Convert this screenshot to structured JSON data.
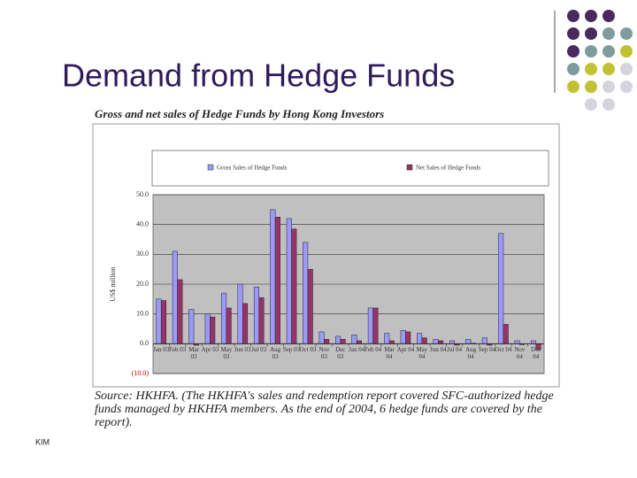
{
  "header": {
    "title": "Demand from Hedge Funds"
  },
  "footer": {
    "text": "KIM"
  },
  "chart_data": {
    "type": "bar",
    "title": "Gross and net sales of Hedge Funds by Hong Kong Investors",
    "ylabel": "US$ million",
    "categories": [
      "Jan 03",
      "Feb 03",
      "Mar 03",
      "Apr 03",
      "May 03",
      "Jun 03",
      "Jul 03",
      "Aug 03",
      "Sep 03",
      "Oct 03",
      "Nov 03",
      "Dec 03",
      "Jan 04",
      "Feb 04",
      "Mar 04",
      "Apr 04",
      "May 04",
      "Jun 04",
      "Jul 04",
      "Aug 04",
      "Sep 04",
      "Oct 04",
      "Nov 04",
      "Dec 04"
    ],
    "series": [
      {
        "name": "Gross Sales of Hedge Funds",
        "color": "#9999ff",
        "values": [
          15,
          31,
          11.5,
          10,
          17,
          20,
          19,
          45,
          42,
          34,
          4,
          2.5,
          3,
          12,
          3.5,
          4.5,
          3.5,
          1.5,
          1,
          1.5,
          2,
          37,
          1,
          1
        ]
      },
      {
        "name": "Net Sales of Hedge Funds",
        "color": "#993366",
        "values": [
          14.5,
          21.5,
          -0.5,
          9,
          12,
          13.5,
          15.5,
          42.5,
          38.5,
          25,
          1.5,
          1.5,
          1,
          12,
          1,
          4,
          2,
          1,
          -0.5,
          0.2,
          -0.5,
          6.5,
          -0.3,
          -2
        ]
      }
    ],
    "ylim": [
      -10,
      50
    ],
    "yticks": [
      {
        "value": -10,
        "label": "(10.0)"
      },
      {
        "value": 0,
        "label": "0.0"
      },
      {
        "value": 10,
        "label": "10.0"
      },
      {
        "value": 20,
        "label": "20.0"
      },
      {
        "value": 30,
        "label": "30.0"
      },
      {
        "value": 40,
        "label": "40.0"
      },
      {
        "value": 50,
        "label": "50.0"
      }
    ],
    "grid": true,
    "source": "Source: HKHFA. (The HKHFA's sales and redemption report covered SFC-authorized hedge funds managed by HKHFA members. As the end of 2004, 6 hedge funds are covered by the report)."
  }
}
